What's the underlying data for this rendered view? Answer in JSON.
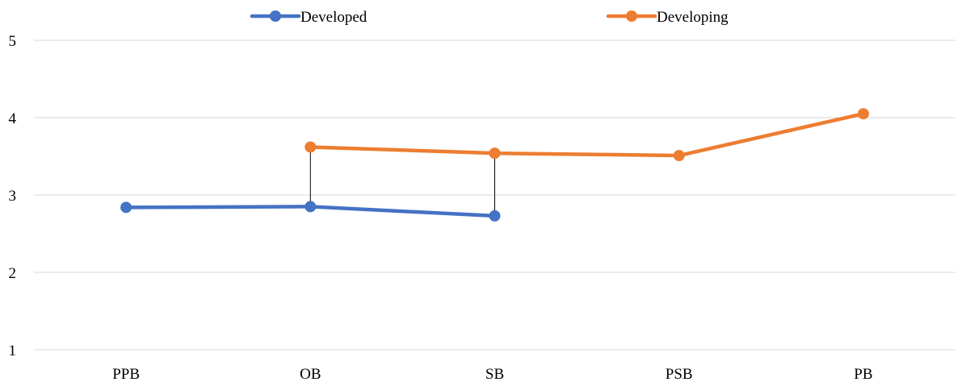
{
  "chart_data": {
    "type": "line",
    "categories": [
      "PPB",
      "OB",
      "SB",
      "PSB",
      "PB"
    ],
    "series": [
      {
        "name": "Developed",
        "color": "#4472C4",
        "values": [
          2.84,
          2.85,
          2.73,
          null,
          null
        ]
      },
      {
        "name": "Developing",
        "color": "#ED7D31",
        "values": [
          null,
          3.62,
          3.54,
          3.51,
          4.05
        ]
      }
    ],
    "drop_lines": {
      "color": "#000000",
      "categories": [
        "OB",
        "SB"
      ]
    },
    "ylim": [
      1,
      5
    ],
    "yticks": [
      1,
      2,
      3,
      4,
      5
    ],
    "grid": true,
    "grid_color": "#d9d9d9",
    "legend": "top-center",
    "title": "",
    "xlabel": "",
    "ylabel": ""
  }
}
